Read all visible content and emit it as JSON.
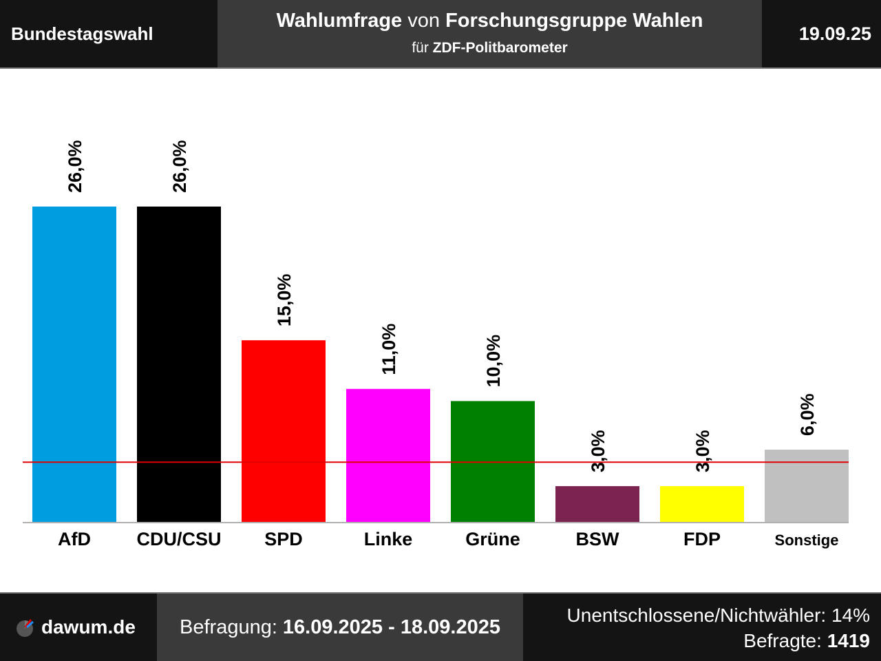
{
  "header": {
    "left_title": "Bundestagswahl",
    "title_part1": "Wahlumfrage",
    "title_part2": "von",
    "title_part3": "Forschungsgruppe Wahlen",
    "subtitle_part1": "für",
    "subtitle_part2": "ZDF-Politbarometer",
    "date": "19.09.25"
  },
  "footer": {
    "brand": "dawum.de",
    "brand_icon": "dawum-logo-icon",
    "survey_label": "Befragung:",
    "survey_period": "16.09.2025 - 18.09.2025",
    "undecided": "Unentschlossene/Nichtwähler: 14%",
    "respondents_label": "Befragte:",
    "respondents": "1419"
  },
  "chart_data": {
    "type": "bar",
    "categories": [
      "AfD",
      "CDU/CSU",
      "SPD",
      "Linke",
      "Grüne",
      "BSW",
      "FDP",
      "Sonstige"
    ],
    "values": [
      26.0,
      26.0,
      15.0,
      11.0,
      10.0,
      3.0,
      3.0,
      6.0
    ],
    "value_labels": [
      "26,0%",
      "26,0%",
      "15,0%",
      "11,0%",
      "10,0%",
      "3,0%",
      "3,0%",
      "6,0%"
    ],
    "colors": [
      "#009ee0",
      "#000000",
      "#ff0000",
      "#ff00ff",
      "#008000",
      "#7c2451",
      "#ffff00",
      "#c0c0c0"
    ],
    "threshold": 5,
    "threshold_color": "#e00000",
    "ylim": [
      0,
      26
    ],
    "grid": false
  }
}
